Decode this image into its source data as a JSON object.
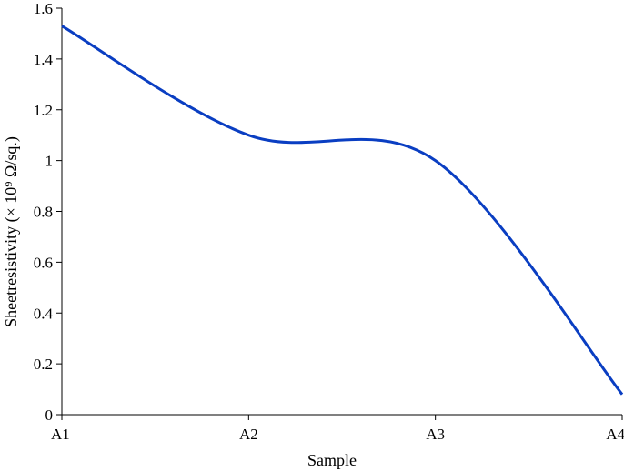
{
  "chart_data": {
    "type": "line",
    "categories": [
      "A1",
      "A2",
      "A3",
      "A4"
    ],
    "x": [
      "A1",
      "A2",
      "A3",
      "A4"
    ],
    "series": [
      {
        "values": [
          1.53,
          1.1,
          1.0,
          0.08
        ]
      }
    ],
    "smoothed": true,
    "xlabel": "Sample",
    "ylabel": "Sheetresistivity (× 10⁹ Ω/sq.)",
    "ylim": [
      0,
      1.6
    ],
    "yticks": [
      "0",
      "0.2",
      "0.4",
      "0.6",
      "0.8",
      "1",
      "1.2",
      "1.4",
      "1.6"
    ],
    "grid": false,
    "legend": "none",
    "line_color": "#0a3ec2"
  }
}
